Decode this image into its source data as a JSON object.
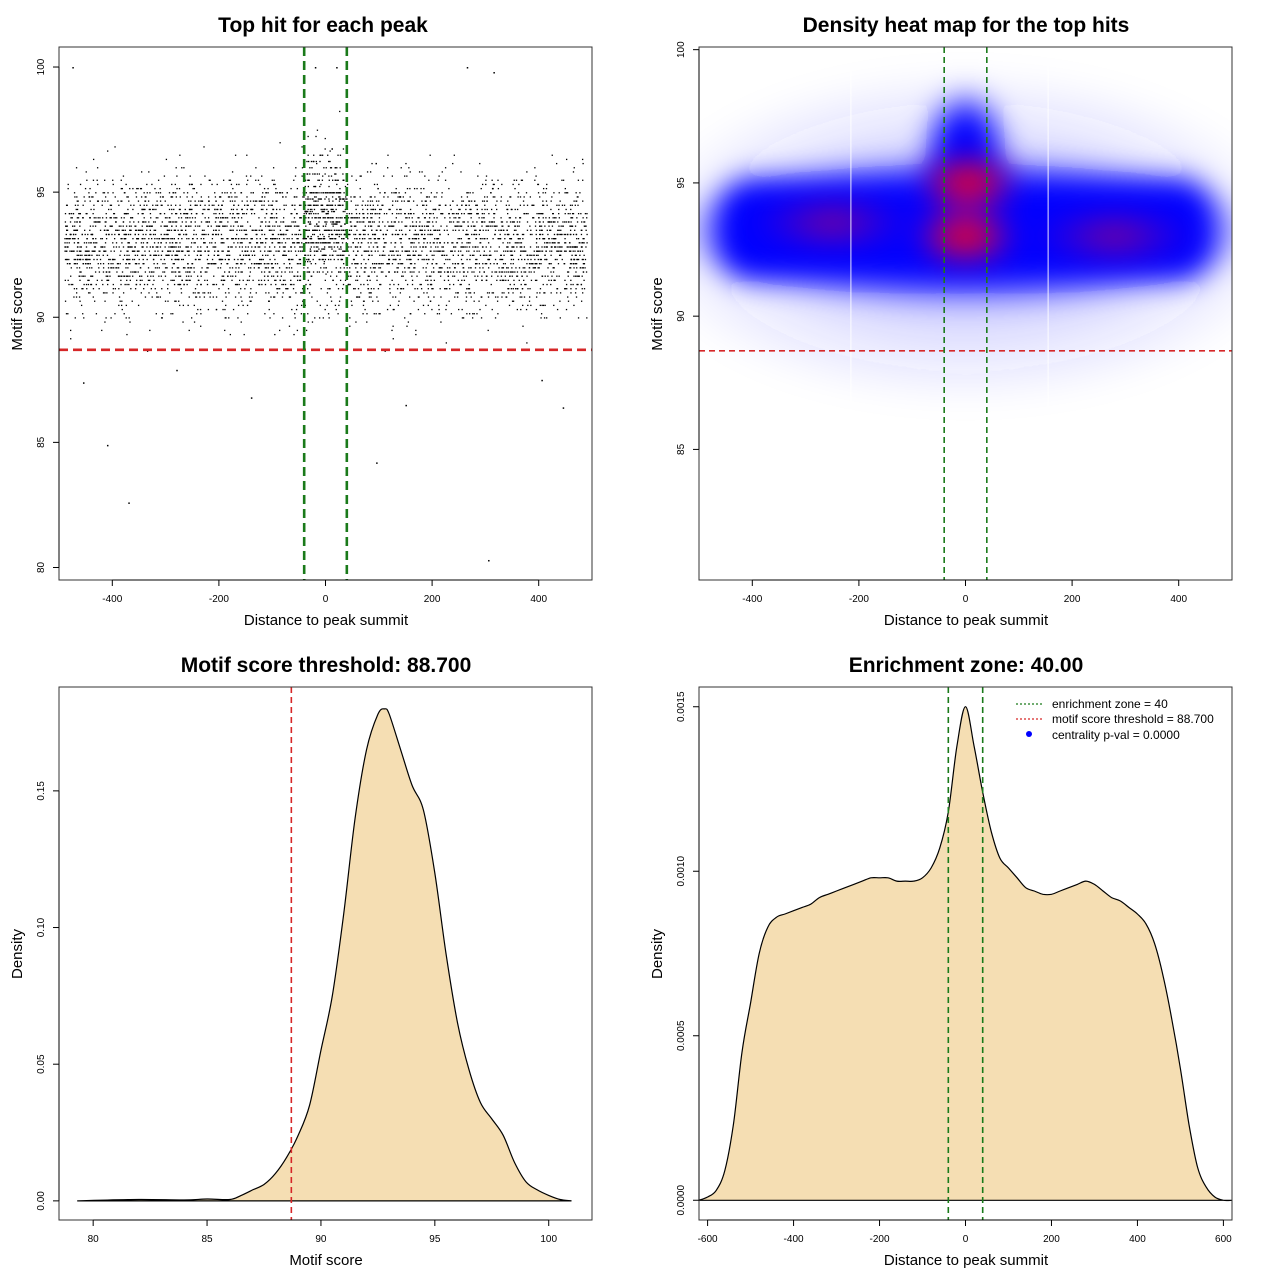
{
  "figure": {
    "layout": "2x2 panel grid"
  },
  "chart_data": [
    {
      "type": "scatter",
      "title": "Top hit for each peak",
      "xlabel": "Distance to peak summit",
      "ylabel": "Motif score",
      "xlim": [
        -500,
        500
      ],
      "ylim": [
        79.5,
        100.8
      ],
      "xticks": [
        -400,
        -200,
        0,
        200,
        400
      ],
      "xtick_labels": [
        "-400",
        "-200",
        "0",
        "200",
        "400"
      ],
      "yticks": [
        80,
        85,
        90,
        95,
        100
      ],
      "ytick_labels": [
        "80",
        "85",
        "90",
        "95",
        "100"
      ],
      "reference_lines": {
        "horizontal": {
          "value": 88.7,
          "color": "#d62728",
          "style": "dashed"
        },
        "vertical": [
          {
            "value": -40,
            "color": "#1a7a1a",
            "style": "dashed"
          },
          {
            "value": 40,
            "color": "#1a7a1a",
            "style": "dashed"
          }
        ]
      },
      "points_note": "Several thousand points, x uniform in [-490, 490], y mostly 88–99 centered near 93",
      "sample_points": [
        {
          "x": -475,
          "y": 100.0
        },
        {
          "x": -370,
          "y": 82.6
        },
        {
          "x": -410,
          "y": 84.9
        },
        {
          "x": 95,
          "y": 84.2
        },
        {
          "x": 305,
          "y": 80.3
        },
        {
          "x": 265,
          "y": 100.0
        },
        {
          "x": 315,
          "y": 99.8
        },
        {
          "x": -20,
          "y": 100.0
        },
        {
          "x": 20,
          "y": 100.0
        },
        {
          "x": -140,
          "y": 86.8
        },
        {
          "x": 150,
          "y": 86.5
        },
        {
          "x": 445,
          "y": 86.4
        },
        {
          "x": -455,
          "y": 87.4
        },
        {
          "x": 405,
          "y": 87.5
        },
        {
          "x": -280,
          "y": 87.9
        }
      ]
    },
    {
      "type": "heatmap",
      "title": "Density heat map for the top hits",
      "xlabel": "Distance to peak summit",
      "ylabel": "Motif score",
      "xlim": [
        -500,
        500
      ],
      "ylim": [
        80.1,
        100.1
      ],
      "xticks": [
        -400,
        -200,
        0,
        200,
        400
      ],
      "xtick_labels": [
        "-400",
        "-200",
        "0",
        "200",
        "400"
      ],
      "yticks": [
        85,
        90,
        95,
        100
      ],
      "ytick_labels": [
        "85",
        "90",
        "95",
        "100"
      ],
      "colors": {
        "low": "#ffffff",
        "mid": "#0000ff",
        "high": "#ff0000"
      },
      "reference_lines": {
        "horizontal": {
          "value": 88.7,
          "color": "#d62728",
          "style": "dashed"
        },
        "vertical": [
          {
            "value": -40,
            "color": "#1a7a1a",
            "style": "dashed"
          },
          {
            "value": 40,
            "color": "#1a7a1a",
            "style": "dashed"
          }
        ]
      },
      "hotspots": [
        {
          "x": 0,
          "y": 93,
          "intensity": "high"
        },
        {
          "x": 5,
          "y": 95,
          "intensity": "high"
        },
        {
          "x": 280,
          "y": 93,
          "intensity": "medium"
        },
        {
          "x": -250,
          "y": 93.5,
          "intensity": "medium"
        }
      ]
    },
    {
      "type": "area",
      "title": "Motif score threshold: 88.700",
      "xlabel": "Motif score",
      "ylabel": "Density",
      "xlim": [
        78.5,
        101.9
      ],
      "ylim": [
        -0.007,
        0.188
      ],
      "xticks": [
        80,
        85,
        90,
        95,
        100
      ],
      "xtick_labels": [
        "80",
        "85",
        "90",
        "95",
        "100"
      ],
      "yticks": [
        0.0,
        0.05,
        0.1,
        0.15
      ],
      "ytick_labels": [
        "0.00",
        "0.05",
        "0.10",
        "0.15"
      ],
      "fill_color": "#f5deb3",
      "reference_lines": {
        "vertical": [
          {
            "value": 88.7,
            "color": "#d62728",
            "style": "dashed"
          }
        ]
      },
      "x": [
        79.3,
        82.0,
        84.0,
        85.0,
        86.0,
        86.5,
        87.0,
        87.5,
        88.0,
        88.5,
        89.0,
        89.5,
        90.0,
        90.5,
        91.0,
        91.5,
        92.0,
        92.5,
        92.8,
        93.0,
        93.5,
        94.0,
        94.5,
        95.0,
        95.5,
        96.0,
        96.5,
        97.0,
        97.5,
        98.0,
        98.5,
        99.0,
        99.5,
        100.0,
        100.5,
        101.0
      ],
      "y": [
        0.0,
        0.0005,
        0.0003,
        0.0007,
        0.0005,
        0.002,
        0.004,
        0.006,
        0.01,
        0.016,
        0.024,
        0.035,
        0.055,
        0.075,
        0.105,
        0.14,
        0.165,
        0.178,
        0.18,
        0.178,
        0.165,
        0.152,
        0.143,
        0.12,
        0.09,
        0.065,
        0.048,
        0.036,
        0.03,
        0.024,
        0.014,
        0.007,
        0.004,
        0.002,
        0.0005,
        0.0
      ]
    },
    {
      "type": "area",
      "title": "Enrichment zone: 40.00",
      "xlabel": "Distance to peak summit",
      "ylabel": "Density",
      "xlim": [
        -620,
        620
      ],
      "ylim": [
        -6e-05,
        0.00156
      ],
      "xticks": [
        -600,
        -400,
        -200,
        0,
        200,
        400,
        600
      ],
      "xtick_labels": [
        "-600",
        "-400",
        "-200",
        "0",
        "200",
        "400",
        "600"
      ],
      "yticks": [
        0.0,
        0.0005,
        0.001,
        0.0015
      ],
      "ytick_labels": [
        "0.0000",
        "0.0005",
        "0.0010",
        "0.0015"
      ],
      "fill_color": "#f5deb3",
      "reference_lines": {
        "vertical": [
          {
            "value": -40,
            "color": "#1a7a1a",
            "style": "dashed"
          },
          {
            "value": 40,
            "color": "#1a7a1a",
            "style": "dashed"
          }
        ]
      },
      "x": [
        -620,
        -600,
        -580,
        -560,
        -540,
        -520,
        -500,
        -480,
        -460,
        -440,
        -420,
        -400,
        -380,
        -360,
        -340,
        -320,
        -300,
        -280,
        -260,
        -240,
        -220,
        -200,
        -180,
        -160,
        -140,
        -120,
        -100,
        -80,
        -60,
        -40,
        -20,
        0,
        20,
        40,
        60,
        80,
        100,
        120,
        140,
        160,
        180,
        200,
        220,
        240,
        260,
        280,
        300,
        320,
        340,
        360,
        380,
        400,
        420,
        440,
        460,
        480,
        500,
        520,
        540,
        560,
        580,
        600,
        620
      ],
      "y": [
        0.0,
        1e-05,
        3e-05,
        9e-05,
        0.00023,
        0.00045,
        0.0006,
        0.00075,
        0.00083,
        0.00086,
        0.00087,
        0.00088,
        0.00089,
        0.0009,
        0.00092,
        0.00093,
        0.00094,
        0.00095,
        0.00096,
        0.00097,
        0.00098,
        0.00098,
        0.00098,
        0.00097,
        0.00097,
        0.00097,
        0.00098,
        0.00101,
        0.00107,
        0.00118,
        0.00138,
        0.0015,
        0.00138,
        0.00124,
        0.00112,
        0.00104,
        0.00101,
        0.00098,
        0.00095,
        0.00094,
        0.00093,
        0.00093,
        0.00094,
        0.00095,
        0.00096,
        0.00097,
        0.00096,
        0.00094,
        0.00092,
        0.00091,
        0.00089,
        0.00087,
        0.00084,
        0.00078,
        0.00068,
        0.00055,
        0.0004,
        0.00023,
        0.0001,
        4e-05,
        1e-05,
        0.0,
        0.0
      ],
      "legend": {
        "position": "top-right",
        "items": [
          {
            "label": "enrichment zone = 40",
            "color": "#1a7a1a",
            "marker": "dotted-line"
          },
          {
            "label": "motif score threshold = 88.700",
            "color": "#d62728",
            "marker": "dotted-line"
          },
          {
            "label": "centrality p-val = 0.0000",
            "color": "#0000ff",
            "marker": "dot"
          }
        ]
      }
    }
  ]
}
